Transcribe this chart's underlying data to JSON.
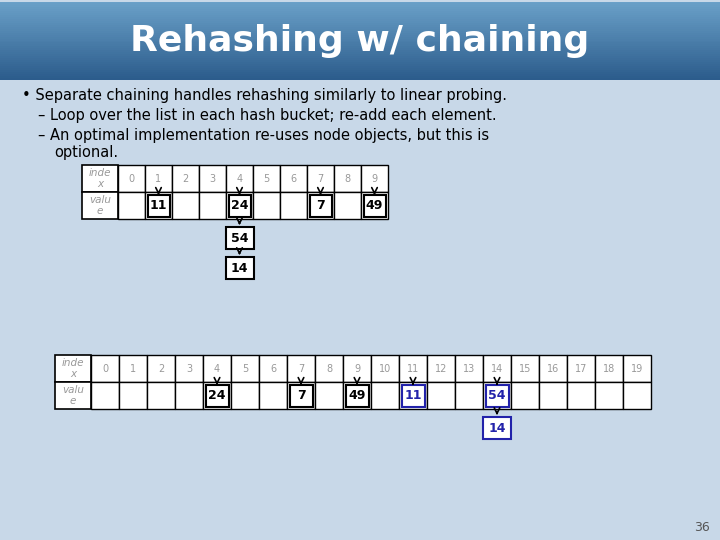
{
  "title": "Rehashing w/ chaining",
  "title_bg_top": "#6aa0c8",
  "title_bg_bottom": "#2a5a8a",
  "title_text_color": "#ffffff",
  "slide_bg": "#c8d8e8",
  "bullets": [
    "• Separate chaining handles rehashing similarly to linear probing.",
    "– Loop over the list in each hash bucket; re-add each element.",
    "– An optimal implementation re-uses node objects, but this is",
    "    optional."
  ],
  "table1": {
    "n_cols": 10,
    "values_map": {
      "1": 11,
      "4": 24,
      "7": 7,
      "9": 49
    },
    "chain_at": 4,
    "chain_vals": [
      54,
      14
    ]
  },
  "table2": {
    "n_cols": 20,
    "values_map": {
      "4": 24,
      "7": 7,
      "9": 49,
      "11": 11,
      "14": 54
    },
    "chain_at": 14,
    "chain_vals": [
      14
    ],
    "blue_vals": [
      11,
      54,
      14
    ]
  },
  "gray_color": "#999999",
  "blue_value_color": "#2222aa",
  "page_number": "36"
}
